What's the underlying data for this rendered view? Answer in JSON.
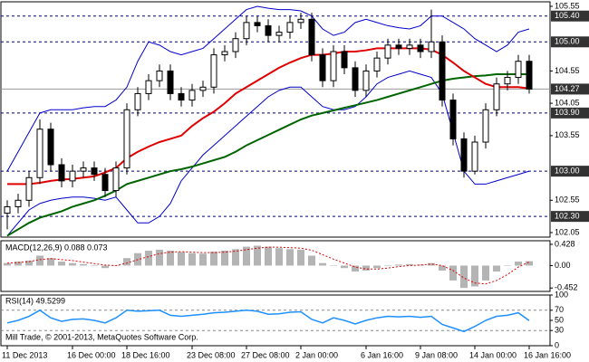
{
  "chart_data": [
    {
      "type": "candlestick",
      "ylim": [
        101.98,
        105.62
      ],
      "yticks": [
        105.55,
        104.55,
        104.05,
        103.55,
        102.55,
        102.05
      ],
      "levels": [
        {
          "value": 105.4,
          "label": "105.40"
        },
        {
          "value": 105.0,
          "label": "105.00"
        },
        {
          "value": 103.9,
          "label": "103.90"
        },
        {
          "value": 103.0,
          "label": "103.00"
        },
        {
          "value": 102.3,
          "label": "102.30"
        }
      ],
      "current_price": 104.27,
      "open": [
        102.35,
        102.45,
        102.55,
        102.9,
        103.65,
        103.1,
        102.85,
        103.0,
        103.05,
        102.95,
        102.7,
        103.05,
        103.95,
        104.2,
        104.4,
        104.55,
        104.2,
        104.1,
        104.25,
        104.3,
        104.8,
        104.85,
        105.05,
        105.3,
        105.25,
        105.1,
        105.15,
        105.3,
        105.35,
        104.8,
        104.4,
        104.85,
        104.6,
        104.25,
        104.55,
        104.75,
        104.95,
        104.9,
        104.95,
        104.85,
        105.0,
        104.1,
        103.5,
        103.0,
        103.45,
        103.95,
        104.35,
        104.45,
        104.7
      ],
      "high": [
        102.55,
        102.65,
        103.0,
        103.8,
        103.75,
        103.2,
        103.1,
        103.15,
        103.15,
        103.05,
        103.15,
        104.05,
        104.3,
        104.5,
        104.65,
        104.65,
        104.3,
        104.35,
        104.4,
        104.9,
        104.95,
        105.15,
        105.4,
        105.4,
        105.35,
        105.25,
        105.4,
        105.45,
        105.45,
        104.9,
        104.95,
        104.95,
        104.7,
        104.65,
        104.85,
        105.05,
        105.05,
        105.05,
        105.05,
        105.5,
        105.1,
        104.2,
        103.6,
        103.55,
        104.05,
        104.45,
        104.55,
        104.8,
        104.8
      ],
      "low": [
        102.1,
        102.35,
        102.45,
        102.8,
        103.0,
        102.75,
        102.75,
        102.9,
        102.85,
        102.6,
        102.6,
        102.95,
        103.85,
        104.1,
        104.3,
        104.1,
        104.0,
        104.0,
        104.15,
        104.2,
        104.7,
        104.75,
        104.95,
        105.15,
        105.0,
        105.0,
        105.05,
        105.2,
        104.7,
        104.3,
        104.3,
        104.5,
        104.15,
        104.15,
        104.45,
        104.65,
        104.8,
        104.8,
        104.75,
        104.75,
        104.0,
        103.4,
        102.9,
        102.95,
        103.35,
        103.85,
        104.25,
        104.35,
        104.2
      ],
      "close": [
        102.45,
        102.55,
        102.9,
        103.65,
        103.1,
        102.85,
        103.0,
        103.05,
        102.95,
        102.7,
        103.05,
        103.95,
        104.2,
        104.4,
        104.55,
        104.2,
        104.1,
        104.25,
        104.3,
        104.8,
        104.85,
        105.05,
        105.3,
        105.25,
        105.1,
        105.15,
        105.3,
        105.35,
        104.8,
        104.4,
        104.85,
        104.6,
        104.25,
        104.55,
        104.75,
        104.95,
        104.9,
        104.95,
        104.85,
        105.0,
        104.1,
        103.5,
        103.0,
        103.45,
        103.95,
        104.35,
        104.45,
        104.7,
        104.27
      ],
      "series": [
        {
          "color": "#0000cc",
          "values": [
            103.0,
            103.3,
            103.6,
            103.9,
            103.95,
            103.95,
            103.95,
            103.98,
            104.0,
            104.0,
            104.1,
            104.3,
            104.7,
            105.0,
            104.95,
            104.85,
            104.8,
            104.85,
            104.9,
            105.05,
            105.2,
            105.35,
            105.5,
            105.55,
            105.52,
            105.5,
            105.5,
            105.48,
            105.4,
            105.2,
            105.1,
            105.15,
            105.3,
            105.35,
            105.3,
            105.25,
            105.22,
            105.2,
            105.25,
            105.4,
            105.4,
            105.3,
            105.2,
            105.05,
            104.95,
            104.85,
            104.95,
            105.15,
            105.2
          ]
        },
        {
          "color": "#0000cc",
          "values": [
            102.0,
            102.2,
            102.4,
            102.5,
            102.55,
            102.58,
            102.6,
            102.6,
            102.58,
            102.55,
            102.6,
            102.4,
            102.2,
            102.2,
            102.3,
            102.5,
            102.85,
            103.05,
            103.25,
            103.4,
            103.55,
            103.7,
            103.85,
            104.0,
            104.15,
            104.25,
            104.3,
            104.3,
            104.15,
            104.0,
            103.95,
            103.95,
            104.0,
            104.15,
            104.35,
            104.45,
            104.5,
            104.55,
            104.5,
            104.45,
            104.2,
            103.6,
            103.0,
            102.8,
            102.8,
            102.85,
            102.9,
            102.95,
            103.0
          ]
        },
        {
          "color": "#006400",
          "values": [
            102.0,
            102.1,
            102.2,
            102.28,
            102.33,
            102.38,
            102.45,
            102.5,
            102.55,
            102.62,
            102.7,
            102.8,
            102.85,
            102.9,
            102.95,
            103.0,
            103.03,
            103.07,
            103.12,
            103.17,
            103.22,
            103.3,
            103.4,
            103.48,
            103.56,
            103.64,
            103.72,
            103.8,
            103.86,
            103.9,
            103.94,
            103.98,
            104.02,
            104.06,
            104.1,
            104.15,
            104.2,
            104.25,
            104.3,
            104.35,
            104.4,
            104.43,
            104.45,
            104.47,
            104.48,
            104.5,
            104.5,
            104.5,
            104.5
          ]
        },
        {
          "color": "#e00000",
          "values": [
            102.8,
            102.8,
            102.8,
            102.82,
            102.85,
            102.87,
            102.88,
            102.9,
            102.92,
            102.98,
            103.05,
            103.2,
            103.3,
            103.38,
            103.45,
            103.5,
            103.55,
            103.7,
            103.82,
            103.92,
            104.05,
            104.2,
            104.3,
            104.4,
            104.5,
            104.6,
            104.68,
            104.75,
            104.8,
            104.8,
            104.82,
            104.85,
            104.85,
            104.87,
            104.9,
            104.9,
            104.9,
            104.9,
            104.9,
            104.88,
            104.8,
            104.68,
            104.55,
            104.45,
            104.35,
            104.3,
            104.3,
            104.3,
            104.28
          ]
        }
      ]
    },
    {
      "type": "macd",
      "label": "MACD(12,26,9) 0.088 0.073",
      "ylim": [
        -0.52,
        0.5
      ],
      "yticks": [
        0.428,
        {
          "value": 0,
          "label": "0.00"
        },
        -0.452
      ],
      "histogram": {
        "color": "#b4b4b4",
        "values": [
          0.05,
          0.08,
          0.1,
          0.2,
          0.15,
          0.08,
          0.05,
          0.03,
          0.0,
          -0.05,
          0.0,
          0.15,
          0.25,
          0.3,
          0.32,
          0.3,
          0.27,
          0.25,
          0.24,
          0.28,
          0.3,
          0.33,
          0.38,
          0.4,
          0.38,
          0.35,
          0.33,
          0.32,
          0.2,
          0.05,
          0.0,
          -0.05,
          -0.12,
          -0.1,
          -0.05,
          0.0,
          0.02,
          0.03,
          0.02,
          0.05,
          -0.1,
          -0.3,
          -0.45,
          -0.42,
          -0.3,
          -0.12,
          0.0,
          0.08,
          0.088
        ]
      },
      "signal": {
        "color": "#e00000",
        "values": [
          0.05,
          0.06,
          0.08,
          0.12,
          0.14,
          0.12,
          0.1,
          0.07,
          0.04,
          0.01,
          0.0,
          0.05,
          0.12,
          0.18,
          0.24,
          0.27,
          0.28,
          0.27,
          0.26,
          0.26,
          0.27,
          0.29,
          0.32,
          0.35,
          0.37,
          0.37,
          0.36,
          0.35,
          0.31,
          0.22,
          0.13,
          0.05,
          -0.03,
          -0.07,
          -0.07,
          -0.05,
          -0.02,
          0.0,
          0.01,
          0.03,
          0.0,
          -0.1,
          -0.25,
          -0.35,
          -0.37,
          -0.3,
          -0.18,
          -0.03,
          0.073
        ]
      }
    },
    {
      "type": "rsi",
      "label": "RSI(14) 49.5299",
      "ylim": [
        0,
        100
      ],
      "yticks": [
        100,
        70,
        50,
        30,
        0
      ],
      "levels": [
        70,
        30
      ],
      "color": "#1e90ff",
      "values": [
        45,
        50,
        58,
        70,
        55,
        48,
        52,
        53,
        50,
        45,
        55,
        70,
        68,
        69,
        70,
        60,
        58,
        60,
        62,
        65,
        66,
        68,
        70,
        68,
        62,
        63,
        66,
        67,
        52,
        45,
        55,
        50,
        43,
        50,
        55,
        58,
        57,
        58,
        56,
        58,
        42,
        35,
        28,
        38,
        50,
        58,
        60,
        65,
        49.5299
      ],
      "annotation": "Mill Trade, © 2001-2013, MetaQuotes Software Corp.",
      "xticks": [
        {
          "value": 0,
          "label": "11 Dec 2013"
        },
        {
          "value": 6,
          "label": "16 Dec 00:00"
        },
        {
          "value": 11,
          "label": "18 Dec 16:00"
        },
        {
          "value": 17,
          "label": "23 Dec 08:00"
        },
        {
          "value": 22,
          "label": "27 Dec 08:00"
        },
        {
          "value": 27,
          "label": "2 Jan 00:00"
        },
        {
          "value": 33,
          "label": "6 Jan 16:00"
        },
        {
          "value": 38,
          "label": "9 Jan 08:00"
        },
        {
          "value": 43,
          "label": "14 Jan 00:00"
        },
        {
          "value": 48,
          "label": "16 Jan 16:00"
        }
      ]
    }
  ]
}
